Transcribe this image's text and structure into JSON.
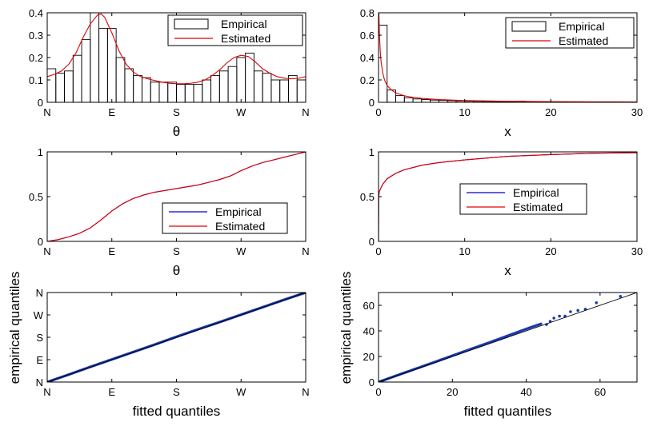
{
  "chart_data": [
    {
      "id": "p1",
      "type": "bar",
      "xlabel": "θ",
      "xlim": [
        0,
        360
      ],
      "ylim": [
        0,
        0.4
      ],
      "xticks": [
        0,
        90,
        180,
        270,
        360
      ],
      "xticklabels": [
        "N",
        "E",
        "S",
        "W",
        "N"
      ],
      "yticks": [
        0,
        0.1,
        0.2,
        0.3,
        0.4
      ],
      "yticklabels": [
        "0",
        "0.1",
        "0.2",
        "0.3",
        "0.4"
      ],
      "legend": {
        "position": "top-right",
        "entries": [
          "Empirical",
          "Estimated"
        ]
      },
      "series": [
        {
          "name": "Empirical",
          "kind": "hist",
          "bin_width": 12,
          "bin_starts": [
            0,
            12,
            24,
            36,
            48,
            60,
            72,
            84,
            96,
            108,
            120,
            132,
            144,
            156,
            168,
            180,
            192,
            204,
            216,
            228,
            240,
            252,
            264,
            276,
            288,
            300,
            312,
            324,
            336,
            348
          ],
          "values": [
            0.15,
            0.13,
            0.14,
            0.21,
            0.28,
            0.4,
            0.33,
            0.33,
            0.2,
            0.15,
            0.12,
            0.11,
            0.09,
            0.09,
            0.09,
            0.08,
            0.08,
            0.08,
            0.1,
            0.12,
            0.14,
            0.16,
            0.2,
            0.22,
            0.14,
            0.13,
            0.1,
            0.1,
            0.12,
            0.1
          ]
        },
        {
          "name": "Estimated",
          "kind": "line",
          "color": "#e00000",
          "x": [
            0,
            10,
            20,
            30,
            40,
            50,
            60,
            70,
            75,
            80,
            90,
            100,
            110,
            120,
            130,
            140,
            150,
            160,
            170,
            180,
            190,
            200,
            210,
            220,
            230,
            240,
            250,
            260,
            270,
            280,
            290,
            300,
            310,
            320,
            330,
            340,
            350,
            360
          ],
          "y": [
            0.115,
            0.125,
            0.14,
            0.17,
            0.22,
            0.29,
            0.35,
            0.39,
            0.395,
            0.38,
            0.31,
            0.23,
            0.17,
            0.135,
            0.115,
            0.105,
            0.097,
            0.09,
            0.085,
            0.083,
            0.083,
            0.085,
            0.09,
            0.1,
            0.12,
            0.145,
            0.175,
            0.2,
            0.21,
            0.205,
            0.18,
            0.15,
            0.13,
            0.115,
            0.108,
            0.105,
            0.107,
            0.115
          ]
        }
      ]
    },
    {
      "id": "p2",
      "type": "bar",
      "xlabel": "x",
      "xlim": [
        0,
        30
      ],
      "ylim": [
        0,
        0.8
      ],
      "xticks": [
        0,
        10,
        20,
        30
      ],
      "xticklabels": [
        "0",
        "10",
        "20",
        "30"
      ],
      "yticks": [
        0,
        0.2,
        0.4,
        0.6,
        0.8
      ],
      "yticklabels": [
        "0",
        "0.2",
        "0.4",
        "0.6",
        "0.8"
      ],
      "legend": {
        "position": "top-right",
        "entries": [
          "Empirical",
          "Estimated"
        ]
      },
      "series": [
        {
          "name": "Empirical",
          "kind": "hist",
          "bin_width": 1,
          "bin_starts": [
            0,
            1,
            2,
            3,
            4,
            5,
            6,
            7,
            8,
            9,
            10,
            11,
            12,
            13,
            14,
            15,
            16,
            17,
            18,
            19,
            20,
            21,
            22,
            23,
            24,
            25,
            26,
            27,
            28,
            29
          ],
          "values": [
            0.69,
            0.11,
            0.06,
            0.04,
            0.03,
            0.025,
            0.02,
            0.017,
            0.014,
            0.012,
            0.01,
            0.009,
            0.008,
            0.007,
            0.006,
            0.006,
            0.01,
            0.005,
            0.005,
            0.004,
            0.004,
            0.004,
            0.003,
            0.003,
            0.003,
            0.003,
            0.003,
            0.002,
            0.002,
            0.002
          ]
        },
        {
          "name": "Estimated",
          "kind": "line",
          "color": "#e00000",
          "x": [
            0.05,
            0.1,
            0.2,
            0.3,
            0.5,
            0.7,
            1,
            1.5,
            2,
            3,
            4,
            5,
            7,
            10,
            15,
            20,
            25,
            30
          ],
          "y": [
            0.8,
            0.62,
            0.45,
            0.36,
            0.26,
            0.2,
            0.15,
            0.11,
            0.085,
            0.058,
            0.044,
            0.035,
            0.024,
            0.016,
            0.009,
            0.006,
            0.004,
            0.003
          ]
        }
      ]
    },
    {
      "id": "p3",
      "type": "line",
      "xlabel": "θ",
      "xlim": [
        0,
        360
      ],
      "ylim": [
        0,
        1
      ],
      "xticks": [
        0,
        90,
        180,
        270,
        360
      ],
      "xticklabels": [
        "N",
        "E",
        "S",
        "W",
        "N"
      ],
      "yticks": [
        0,
        0.5,
        1
      ],
      "yticklabels": [
        "0",
        "0.5",
        "1"
      ],
      "legend": {
        "position": "center-right",
        "entries": [
          "Empirical",
          "Estimated"
        ]
      },
      "series": [
        {
          "name": "Empirical",
          "color": "#0000cc",
          "x": [
            0,
            15,
            30,
            45,
            60,
            75,
            90,
            105,
            120,
            135,
            150,
            165,
            180,
            195,
            210,
            225,
            240,
            255,
            270,
            285,
            300,
            315,
            330,
            345,
            360
          ],
          "y": [
            0,
            0.02,
            0.05,
            0.09,
            0.15,
            0.24,
            0.34,
            0.42,
            0.48,
            0.52,
            0.55,
            0.57,
            0.59,
            0.61,
            0.63,
            0.66,
            0.69,
            0.73,
            0.79,
            0.84,
            0.88,
            0.91,
            0.94,
            0.97,
            1.0
          ]
        },
        {
          "name": "Estimated",
          "color": "#e00000",
          "x": [
            0,
            15,
            30,
            45,
            60,
            75,
            90,
            105,
            120,
            135,
            150,
            165,
            180,
            195,
            210,
            225,
            240,
            255,
            270,
            285,
            300,
            315,
            330,
            345,
            360
          ],
          "y": [
            0,
            0.02,
            0.05,
            0.09,
            0.15,
            0.24,
            0.34,
            0.42,
            0.48,
            0.52,
            0.55,
            0.57,
            0.59,
            0.61,
            0.63,
            0.66,
            0.69,
            0.73,
            0.79,
            0.84,
            0.88,
            0.91,
            0.94,
            0.97,
            1.0
          ]
        }
      ]
    },
    {
      "id": "p4",
      "type": "line",
      "xlabel": "x",
      "xlim": [
        0,
        30
      ],
      "ylim": [
        0,
        1
      ],
      "xticks": [
        0,
        10,
        20,
        30
      ],
      "xticklabels": [
        "0",
        "10",
        "20",
        "30"
      ],
      "yticks": [
        0,
        0.5,
        1
      ],
      "yticklabels": [
        "0",
        "0.5",
        "1"
      ],
      "legend": {
        "position": "center-right",
        "entries": [
          "Empirical",
          "Estimated"
        ]
      },
      "series": [
        {
          "name": "Empirical",
          "color": "#0000cc",
          "x": [
            0,
            0.02,
            0.1,
            0.3,
            0.5,
            1,
            2,
            3,
            5,
            7,
            10,
            15,
            20,
            25,
            30
          ],
          "y": [
            0,
            0.5,
            0.56,
            0.6,
            0.64,
            0.7,
            0.76,
            0.8,
            0.85,
            0.88,
            0.91,
            0.95,
            0.97,
            0.985,
            0.99
          ]
        },
        {
          "name": "Estimated",
          "color": "#e00000",
          "x": [
            0,
            0.02,
            0.1,
            0.3,
            0.5,
            1,
            2,
            3,
            5,
            7,
            10,
            15,
            20,
            25,
            30
          ],
          "y": [
            0,
            0.5,
            0.56,
            0.6,
            0.64,
            0.7,
            0.76,
            0.8,
            0.85,
            0.88,
            0.91,
            0.95,
            0.97,
            0.985,
            0.99
          ]
        }
      ]
    },
    {
      "id": "p5",
      "type": "scatter",
      "xlabel": "fitted quantiles",
      "ylabel": "empirical quantiles",
      "xlim": [
        0,
        360
      ],
      "ylim": [
        0,
        360
      ],
      "xticks": [
        0,
        90,
        180,
        270,
        360
      ],
      "xticklabels": [
        "N",
        "E",
        "S",
        "W",
        "N"
      ],
      "yticks": [
        0,
        90,
        180,
        270,
        360
      ],
      "yticklabels": [
        "N",
        "E",
        "S",
        "W",
        "N"
      ],
      "reference_line": {
        "x": [
          0,
          360
        ],
        "y": [
          0,
          360
        ]
      },
      "series": [
        {
          "kind": "dense-points",
          "color": "#1a3ab0",
          "x": [
            0,
            30,
            60,
            90,
            120,
            150,
            180,
            210,
            240,
            270,
            300,
            330,
            360
          ],
          "y": [
            0,
            30,
            61,
            91,
            121,
            151,
            182,
            212,
            241,
            271,
            301,
            331,
            360
          ]
        }
      ]
    },
    {
      "id": "p6",
      "type": "scatter",
      "xlabel": "fitted quantiles",
      "ylabel": "empirical quantiles",
      "xlim": [
        0,
        70
      ],
      "ylim": [
        0,
        70
      ],
      "xticks": [
        0,
        20,
        40,
        60
      ],
      "xticklabels": [
        "0",
        "20",
        "40",
        "60"
      ],
      "yticks": [
        0,
        20,
        40,
        60
      ],
      "yticklabels": [
        "0",
        "20",
        "40",
        "60"
      ],
      "reference_line": {
        "x": [
          0,
          70
        ],
        "y": [
          0,
          70
        ]
      },
      "series": [
        {
          "kind": "dense-points",
          "color": "#1a3ab0",
          "x": [
            0,
            5,
            10,
            15,
            20,
            25,
            30,
            35,
            40,
            44
          ],
          "y": [
            0,
            5.2,
            10.3,
            15.4,
            20.6,
            25.8,
            30.9,
            36.2,
            41.5,
            45.5
          ]
        },
        {
          "kind": "points",
          "color": "#1a3ab0",
          "x": [
            45.5,
            46.5,
            47.5,
            49,
            50.5,
            52,
            54,
            56,
            59,
            65.5
          ],
          "y": [
            45,
            47.5,
            50,
            51.5,
            51.5,
            55,
            56,
            57,
            62,
            67
          ]
        }
      ]
    }
  ]
}
